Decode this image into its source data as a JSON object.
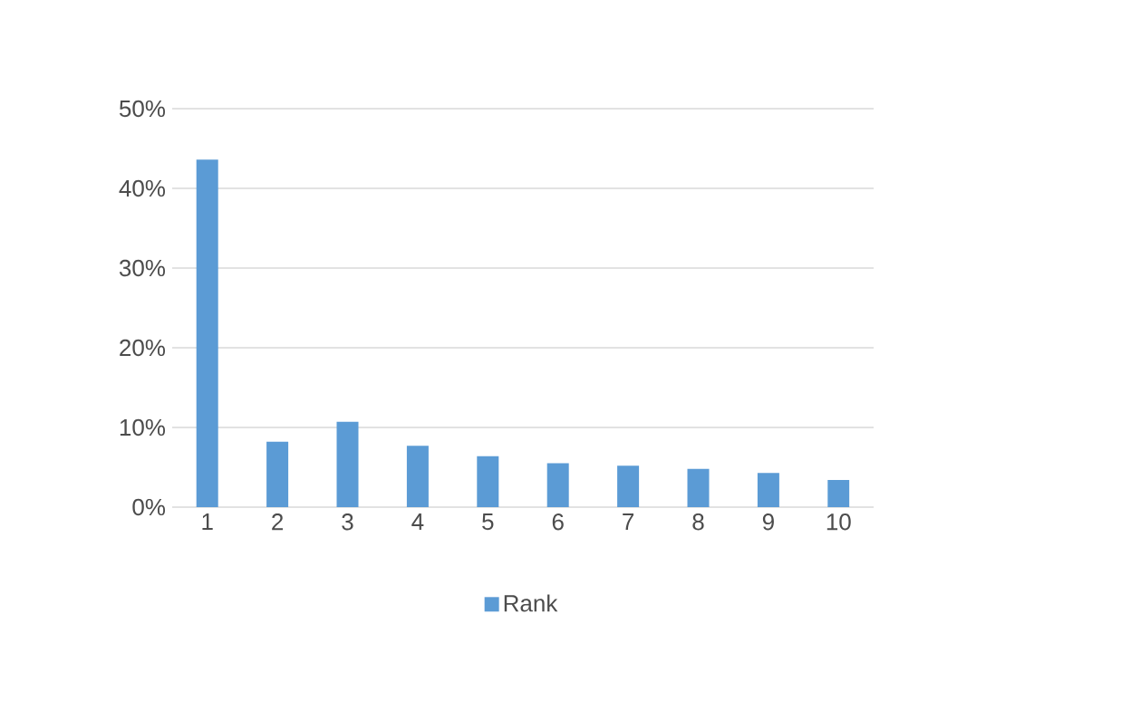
{
  "chart_data": {
    "type": "bar",
    "categories": [
      "1",
      "2",
      "3",
      "4",
      "5",
      "6",
      "7",
      "8",
      "9",
      "10"
    ],
    "series": [
      {
        "name": "Rank",
        "color": "#5b9bd5",
        "values": [
          43.6,
          8.2,
          10.7,
          7.7,
          6.4,
          5.5,
          5.2,
          4.8,
          4.3,
          3.4
        ]
      }
    ],
    "ylim": [
      0,
      50
    ],
    "yticks": [
      {
        "value": 0,
        "label": "0%"
      },
      {
        "value": 10,
        "label": "10%"
      },
      {
        "value": 20,
        "label": "20%"
      },
      {
        "value": 30,
        "label": "30%"
      },
      {
        "value": 40,
        "label": "40%"
      },
      {
        "value": 50,
        "label": "50%"
      }
    ],
    "grid": "y",
    "legend": "bottom"
  }
}
